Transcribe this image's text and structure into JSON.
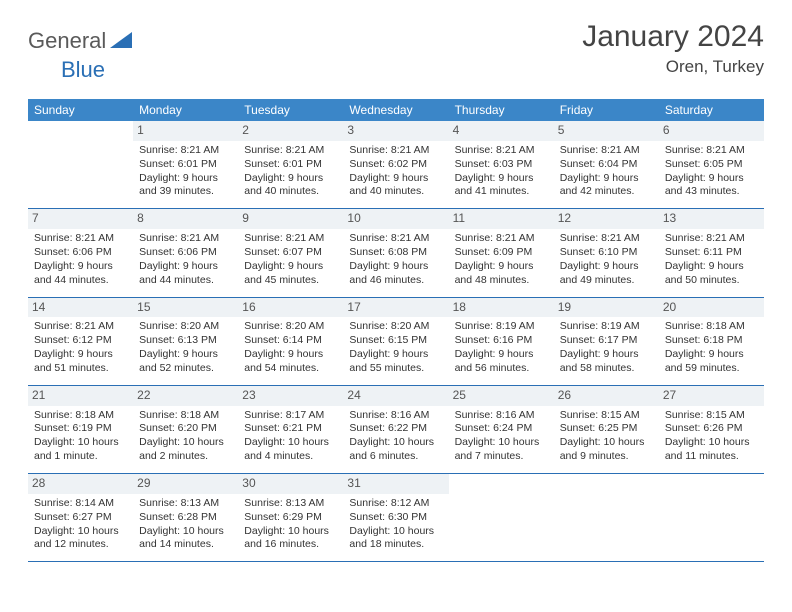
{
  "brand": {
    "part1": "General",
    "part2": "Blue"
  },
  "title": "January 2024",
  "location": "Oren, Turkey",
  "colors": {
    "header_bg": "#3b86c8",
    "header_text": "#ffffff",
    "border": "#2a6fb5",
    "daynum_bg": "#eef2f5",
    "text": "#333333"
  },
  "days_of_week": [
    "Sunday",
    "Monday",
    "Tuesday",
    "Wednesday",
    "Thursday",
    "Friday",
    "Saturday"
  ],
  "weeks": [
    [
      null,
      {
        "n": "1",
        "sr": "Sunrise: 8:21 AM",
        "ss": "Sunset: 6:01 PM",
        "dl": "Daylight: 9 hours and 39 minutes."
      },
      {
        "n": "2",
        "sr": "Sunrise: 8:21 AM",
        "ss": "Sunset: 6:01 PM",
        "dl": "Daylight: 9 hours and 40 minutes."
      },
      {
        "n": "3",
        "sr": "Sunrise: 8:21 AM",
        "ss": "Sunset: 6:02 PM",
        "dl": "Daylight: 9 hours and 40 minutes."
      },
      {
        "n": "4",
        "sr": "Sunrise: 8:21 AM",
        "ss": "Sunset: 6:03 PM",
        "dl": "Daylight: 9 hours and 41 minutes."
      },
      {
        "n": "5",
        "sr": "Sunrise: 8:21 AM",
        "ss": "Sunset: 6:04 PM",
        "dl": "Daylight: 9 hours and 42 minutes."
      },
      {
        "n": "6",
        "sr": "Sunrise: 8:21 AM",
        "ss": "Sunset: 6:05 PM",
        "dl": "Daylight: 9 hours and 43 minutes."
      }
    ],
    [
      {
        "n": "7",
        "sr": "Sunrise: 8:21 AM",
        "ss": "Sunset: 6:06 PM",
        "dl": "Daylight: 9 hours and 44 minutes."
      },
      {
        "n": "8",
        "sr": "Sunrise: 8:21 AM",
        "ss": "Sunset: 6:06 PM",
        "dl": "Daylight: 9 hours and 44 minutes."
      },
      {
        "n": "9",
        "sr": "Sunrise: 8:21 AM",
        "ss": "Sunset: 6:07 PM",
        "dl": "Daylight: 9 hours and 45 minutes."
      },
      {
        "n": "10",
        "sr": "Sunrise: 8:21 AM",
        "ss": "Sunset: 6:08 PM",
        "dl": "Daylight: 9 hours and 46 minutes."
      },
      {
        "n": "11",
        "sr": "Sunrise: 8:21 AM",
        "ss": "Sunset: 6:09 PM",
        "dl": "Daylight: 9 hours and 48 minutes."
      },
      {
        "n": "12",
        "sr": "Sunrise: 8:21 AM",
        "ss": "Sunset: 6:10 PM",
        "dl": "Daylight: 9 hours and 49 minutes."
      },
      {
        "n": "13",
        "sr": "Sunrise: 8:21 AM",
        "ss": "Sunset: 6:11 PM",
        "dl": "Daylight: 9 hours and 50 minutes."
      }
    ],
    [
      {
        "n": "14",
        "sr": "Sunrise: 8:21 AM",
        "ss": "Sunset: 6:12 PM",
        "dl": "Daylight: 9 hours and 51 minutes."
      },
      {
        "n": "15",
        "sr": "Sunrise: 8:20 AM",
        "ss": "Sunset: 6:13 PM",
        "dl": "Daylight: 9 hours and 52 minutes."
      },
      {
        "n": "16",
        "sr": "Sunrise: 8:20 AM",
        "ss": "Sunset: 6:14 PM",
        "dl": "Daylight: 9 hours and 54 minutes."
      },
      {
        "n": "17",
        "sr": "Sunrise: 8:20 AM",
        "ss": "Sunset: 6:15 PM",
        "dl": "Daylight: 9 hours and 55 minutes."
      },
      {
        "n": "18",
        "sr": "Sunrise: 8:19 AM",
        "ss": "Sunset: 6:16 PM",
        "dl": "Daylight: 9 hours and 56 minutes."
      },
      {
        "n": "19",
        "sr": "Sunrise: 8:19 AM",
        "ss": "Sunset: 6:17 PM",
        "dl": "Daylight: 9 hours and 58 minutes."
      },
      {
        "n": "20",
        "sr": "Sunrise: 8:18 AM",
        "ss": "Sunset: 6:18 PM",
        "dl": "Daylight: 9 hours and 59 minutes."
      }
    ],
    [
      {
        "n": "21",
        "sr": "Sunrise: 8:18 AM",
        "ss": "Sunset: 6:19 PM",
        "dl": "Daylight: 10 hours and 1 minute."
      },
      {
        "n": "22",
        "sr": "Sunrise: 8:18 AM",
        "ss": "Sunset: 6:20 PM",
        "dl": "Daylight: 10 hours and 2 minutes."
      },
      {
        "n": "23",
        "sr": "Sunrise: 8:17 AM",
        "ss": "Sunset: 6:21 PM",
        "dl": "Daylight: 10 hours and 4 minutes."
      },
      {
        "n": "24",
        "sr": "Sunrise: 8:16 AM",
        "ss": "Sunset: 6:22 PM",
        "dl": "Daylight: 10 hours and 6 minutes."
      },
      {
        "n": "25",
        "sr": "Sunrise: 8:16 AM",
        "ss": "Sunset: 6:24 PM",
        "dl": "Daylight: 10 hours and 7 minutes."
      },
      {
        "n": "26",
        "sr": "Sunrise: 8:15 AM",
        "ss": "Sunset: 6:25 PM",
        "dl": "Daylight: 10 hours and 9 minutes."
      },
      {
        "n": "27",
        "sr": "Sunrise: 8:15 AM",
        "ss": "Sunset: 6:26 PM",
        "dl": "Daylight: 10 hours and 11 minutes."
      }
    ],
    [
      {
        "n": "28",
        "sr": "Sunrise: 8:14 AM",
        "ss": "Sunset: 6:27 PM",
        "dl": "Daylight: 10 hours and 12 minutes."
      },
      {
        "n": "29",
        "sr": "Sunrise: 8:13 AM",
        "ss": "Sunset: 6:28 PM",
        "dl": "Daylight: 10 hours and 14 minutes."
      },
      {
        "n": "30",
        "sr": "Sunrise: 8:13 AM",
        "ss": "Sunset: 6:29 PM",
        "dl": "Daylight: 10 hours and 16 minutes."
      },
      {
        "n": "31",
        "sr": "Sunrise: 8:12 AM",
        "ss": "Sunset: 6:30 PM",
        "dl": "Daylight: 10 hours and 18 minutes."
      },
      null,
      null,
      null
    ]
  ]
}
